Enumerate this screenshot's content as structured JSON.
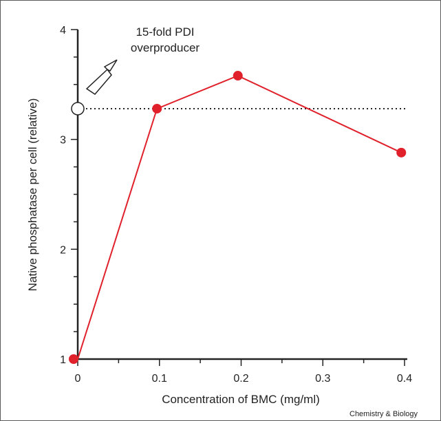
{
  "chart_data": {
    "type": "line",
    "xlabel": "Concentration of BMC (mg/ml)",
    "ylabel": "Native phosphatase per cell (relative)",
    "xlim": [
      0,
      0.4
    ],
    "ylim": [
      1,
      4
    ],
    "x_ticks": [
      "0",
      "0.1",
      "0.2",
      "0.3",
      "0.4"
    ],
    "y_ticks": [
      "1",
      "2",
      "3",
      "4"
    ],
    "series": [
      {
        "x": [
          0,
          0.097,
          0.196,
          0.396
        ],
        "y": [
          1.0,
          3.28,
          3.58,
          2.88
        ],
        "color": "#e0202a"
      }
    ],
    "reference": {
      "x": 0,
      "y": 3.28,
      "style": "open-circle-dotted-line",
      "label": [
        "15-fold PDI",
        "overproducer"
      ]
    },
    "credit": "Chemistry & Biology"
  }
}
